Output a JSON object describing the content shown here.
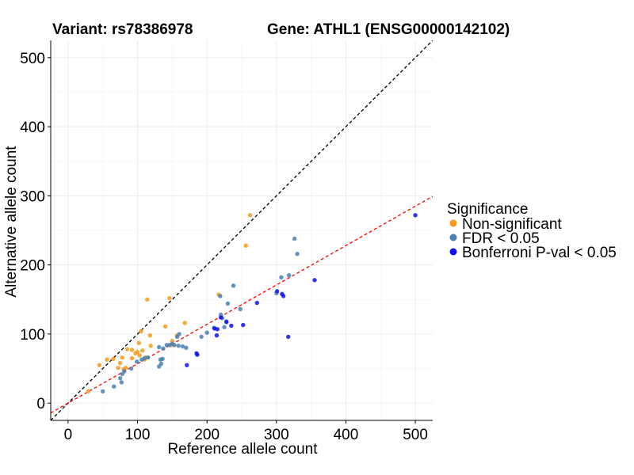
{
  "titles": {
    "variant": "Variant: rs78386978",
    "gene": "Gene: ATHL1 (ENSG00000142102)"
  },
  "chart_data": {
    "type": "scatter",
    "xlabel": "Reference allele count",
    "ylabel": "Alternative allele count",
    "xlim": [
      -25,
      525
    ],
    "ylim": [
      -25,
      525
    ],
    "xticks": [
      0,
      100,
      200,
      300,
      400,
      500
    ],
    "yticks": [
      0,
      100,
      200,
      300,
      400,
      500
    ],
    "grid": true,
    "reference_lines": [
      {
        "name": "identity",
        "slope": 1,
        "intercept": 0,
        "color": "#000000",
        "dash": "dashed"
      },
      {
        "name": "fit",
        "slope": 0.57,
        "intercept": 0,
        "color": "#ff0000",
        "dash": "dashed"
      }
    ],
    "legend": {
      "title": "Significance",
      "position": "right",
      "entries": [
        {
          "label": "Non-significant",
          "color": "#f59a1b"
        },
        {
          "label": "FDR < 0.05",
          "color": "#4a7fb0"
        },
        {
          "label": "Bonferroni P-val < 0.05",
          "color": "#1010f0"
        }
      ]
    },
    "series": [
      {
        "name": "Non-significant",
        "color": "#f59a1b",
        "points": [
          [
            29,
            17
          ],
          [
            45,
            55
          ],
          [
            56,
            63
          ],
          [
            65,
            64
          ],
          [
            72,
            51
          ],
          [
            75,
            58
          ],
          [
            78,
            66
          ],
          [
            80,
            49
          ],
          [
            83,
            51
          ],
          [
            85,
            78
          ],
          [
            92,
            65
          ],
          [
            97,
            72
          ],
          [
            100,
            74
          ],
          [
            102,
            87
          ],
          [
            103,
            69
          ],
          [
            105,
            104
          ],
          [
            107,
            76
          ],
          [
            112,
            66
          ],
          [
            114,
            150
          ],
          [
            118,
            98
          ],
          [
            119,
            83
          ],
          [
            140,
            111
          ],
          [
            146,
            152
          ],
          [
            149,
            84
          ],
          [
            150,
            90
          ],
          [
            157,
            98
          ],
          [
            168,
            116
          ],
          [
            217,
            157
          ],
          [
            256,
            228
          ],
          [
            262,
            272
          ],
          [
            92,
            77
          ],
          [
            110,
            63
          ]
        ]
      },
      {
        "name": "FDR < 0.05",
        "color": "#4a7fb0",
        "points": [
          [
            50,
            17
          ],
          [
            66,
            24
          ],
          [
            75,
            36
          ],
          [
            77,
            30
          ],
          [
            78,
            42
          ],
          [
            81,
            46
          ],
          [
            91,
            50
          ],
          [
            99,
            60
          ],
          [
            106,
            63
          ],
          [
            110,
            65
          ],
          [
            115,
            66
          ],
          [
            131,
            53
          ],
          [
            131,
            81
          ],
          [
            133,
            63
          ],
          [
            134,
            57
          ],
          [
            136,
            64
          ],
          [
            137,
            79
          ],
          [
            142,
            84
          ],
          [
            146,
            84
          ],
          [
            150,
            86
          ],
          [
            153,
            84
          ],
          [
            157,
            96
          ],
          [
            159,
            83
          ],
          [
            160,
            100
          ],
          [
            165,
            82
          ],
          [
            170,
            80
          ],
          [
            192,
            96
          ],
          [
            200,
            102
          ],
          [
            210,
            109
          ],
          [
            220,
            128
          ],
          [
            222,
            123
          ],
          [
            228,
            117
          ],
          [
            230,
            144
          ],
          [
            238,
            170
          ],
          [
            248,
            136
          ],
          [
            300,
            159
          ],
          [
            307,
            182
          ],
          [
            318,
            185
          ],
          [
            326,
            238
          ],
          [
            330,
            216
          ],
          [
            219,
            155
          ],
          [
            225,
            110
          ]
        ]
      },
      {
        "name": "Bonferroni P-val < 0.05",
        "color": "#1010f0",
        "points": [
          [
            171,
            55
          ],
          [
            185,
            72
          ],
          [
            186,
            70
          ],
          [
            211,
            108
          ],
          [
            214,
            98
          ],
          [
            220,
            124
          ],
          [
            228,
            118
          ],
          [
            235,
            112
          ],
          [
            252,
            113
          ],
          [
            272,
            145
          ],
          [
            301,
            162
          ],
          [
            308,
            158
          ],
          [
            310,
            155
          ],
          [
            317,
            96
          ],
          [
            355,
            178
          ],
          [
            500,
            272
          ],
          [
            215,
            107
          ]
        ]
      }
    ]
  }
}
